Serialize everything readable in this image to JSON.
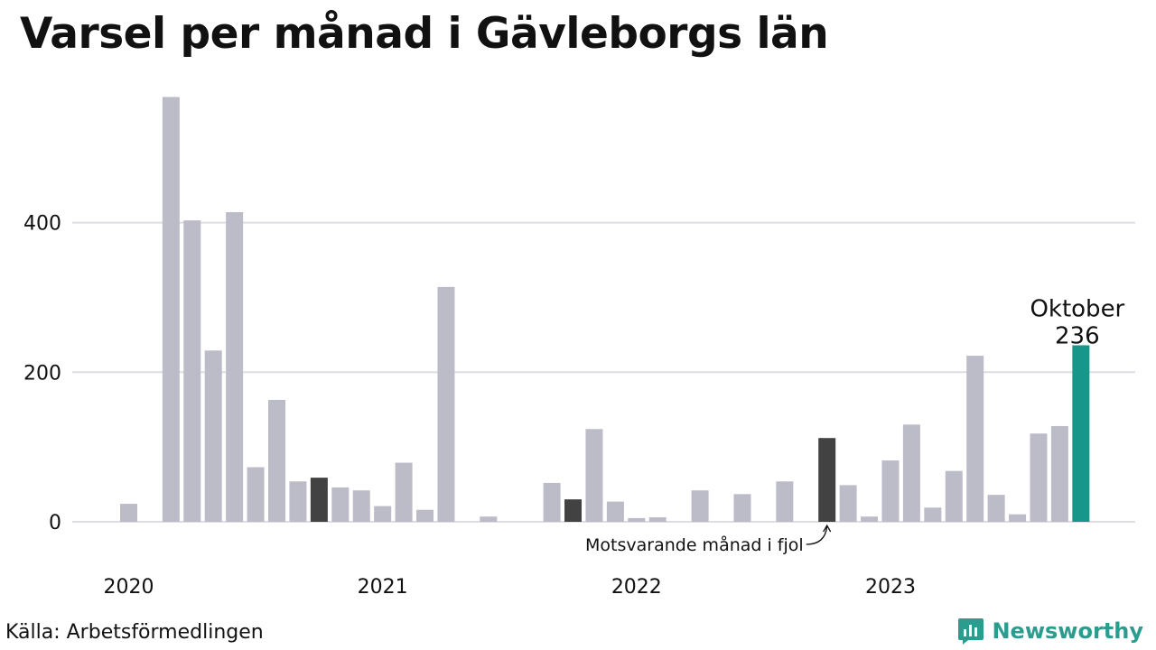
{
  "title": "Varsel per månad i Gävleborgs län",
  "source": "Källa: Arbetsförmedlingen",
  "brand": {
    "name": "Newsworthy",
    "icon": "newsworthy-logo-icon",
    "color": "#2a9d8f"
  },
  "colors": {
    "bar": "#bcbbc8",
    "comparison": "#424242",
    "highlight": "#17968a",
    "grid": "#dddde3"
  },
  "chart_data": {
    "type": "bar",
    "title": "Varsel per månad i Gävleborgs län",
    "xlabel": "",
    "ylabel": "",
    "ylim": [
      0,
      570
    ],
    "yticks": [
      0,
      200,
      400
    ],
    "grid": true,
    "year_labels": [
      {
        "label": "2020",
        "month_index": 0
      },
      {
        "label": "2021",
        "month_index": 12
      },
      {
        "label": "2022",
        "month_index": 24
      },
      {
        "label": "2023",
        "month_index": 36
      }
    ],
    "categories": [
      "2020-01",
      "2020-02",
      "2020-03",
      "2020-04",
      "2020-05",
      "2020-06",
      "2020-07",
      "2020-08",
      "2020-09",
      "2020-10",
      "2020-11",
      "2020-12",
      "2021-01",
      "2021-02",
      "2021-03",
      "2021-04",
      "2021-05",
      "2021-06",
      "2021-07",
      "2021-08",
      "2021-09",
      "2021-10",
      "2021-11",
      "2021-12",
      "2022-01",
      "2022-02",
      "2022-03",
      "2022-04",
      "2022-05",
      "2022-06",
      "2022-07",
      "2022-08",
      "2022-09",
      "2022-10",
      "2022-11",
      "2022-12",
      "2023-01",
      "2023-02",
      "2023-03",
      "2023-04",
      "2023-05",
      "2023-06",
      "2023-07",
      "2023-08",
      "2023-09",
      "2023-10"
    ],
    "values": [
      24,
      0,
      568,
      403,
      229,
      414,
      73,
      163,
      54,
      59,
      46,
      42,
      21,
      79,
      16,
      314,
      0,
      7,
      0,
      0,
      52,
      30,
      124,
      27,
      5,
      6,
      0,
      42,
      0,
      37,
      0,
      54,
      0,
      112,
      49,
      7,
      82,
      130,
      19,
      68,
      222,
      36,
      10,
      118,
      128,
      236
    ],
    "comparison_months": [
      "2020-10",
      "2021-10",
      "2022-10"
    ],
    "highlight_month": "2023-10",
    "highlight_label": "Oktober",
    "highlight_value_label": "236",
    "annotation": {
      "text": "Motsvarande månad i fjol",
      "target_month": "2022-10"
    }
  }
}
